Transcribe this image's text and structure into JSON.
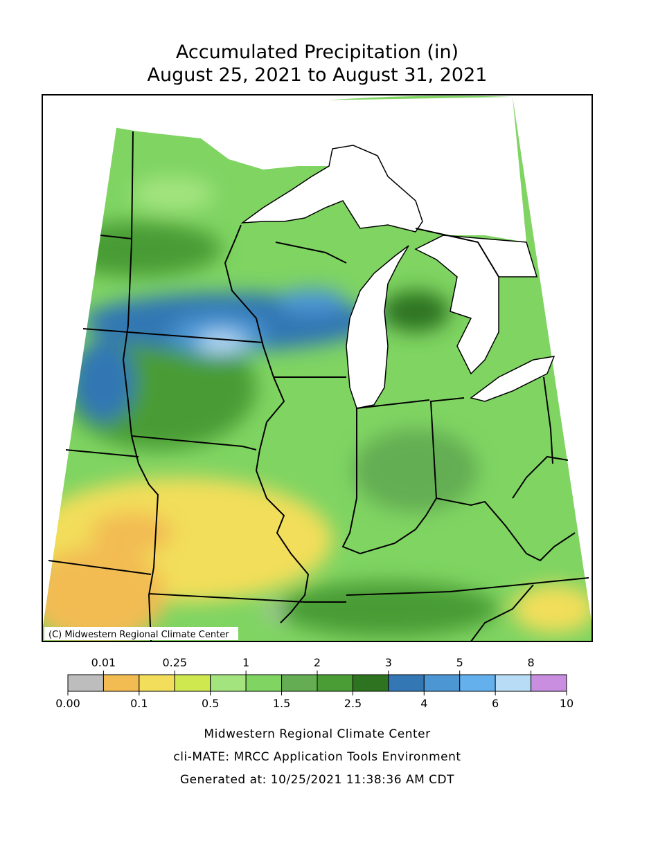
{
  "header": {
    "title": "Accumulated Precipitation (in)",
    "subtitle": "August 25, 2021 to August 31, 2021"
  },
  "map": {
    "credit": "(C) Midwestern Regional Climate Center"
  },
  "legend": {
    "breaks": [
      {
        "value": 0,
        "label": "0.00"
      },
      0.01,
      0.1,
      0.25,
      0.5,
      1,
      1.5,
      2,
      2.5,
      3,
      4,
      5,
      6,
      8,
      10
    ],
    "colors": [
      "#bdbdbd",
      "#f2bc52",
      "#f2de5a",
      "#cfe84f",
      "#a3e47f",
      "#7fd462",
      "#64ad53",
      "#4a9c35",
      "#2e7420",
      "#3377b4",
      "#4c96d4",
      "#63b0ec",
      "#b8dcf6",
      "#c98ee0"
    ]
  },
  "footer": {
    "lines": [
      "Midwestern Regional Climate Center",
      "cli-MATE: MRCC Application Tools Environment",
      "Generated at: 10/25/2021 11:38:36 AM CDT"
    ]
  }
}
